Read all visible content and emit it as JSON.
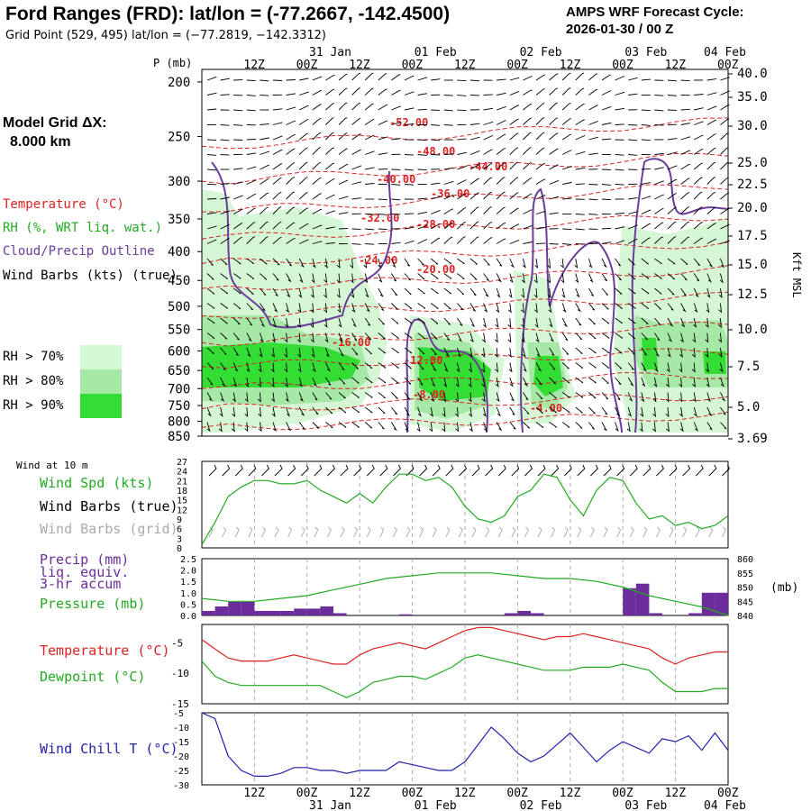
{
  "header": {
    "title": "Ford Ranges (FRD):  lat/lon = (-77.2667, -142.4500)",
    "subtitle": "Grid Point (529, 495) lat/lon = (−77.2819, −142.3312)",
    "cycle_line1": "AMPS WRF Forecast Cycle:",
    "cycle_line2": "2026-01-30 / 00  Z"
  },
  "model_grid": {
    "line1": "Model Grid ΔX:",
    "line2": "8.000 km"
  },
  "legend": {
    "items": [
      {
        "label": "Temperature (°C)",
        "color": "#dd2222"
      },
      {
        "label": "RH (%, WRT liq. wat.)",
        "color": "#22aa22"
      },
      {
        "label": "Cloud/Precip Outline",
        "color": "#6a3d9a"
      },
      {
        "label": "Wind Barbs (kts) (true)",
        "color": "#000000"
      }
    ],
    "rh_boxes": [
      {
        "label": "RH > 70%",
        "color": "#d4f7d4"
      },
      {
        "label": "RH > 80%",
        "color": "#a6e8a6"
      },
      {
        "label": "RH > 90%",
        "color": "#33dd33"
      }
    ]
  },
  "time_axis": {
    "hour_labels": [
      "12Z",
      "00Z",
      "12Z",
      "00Z",
      "12Z",
      "00Z",
      "12Z",
      "00Z",
      "12Z",
      "00Z"
    ],
    "date_labels": [
      "31 Jan",
      "01 Feb",
      "02 Feb",
      "03 Feb",
      "04 Feb"
    ]
  },
  "panels": {
    "upper_air": {
      "ylabel_left": "P (mb)",
      "ylabel_right": "Kft MSL",
      "pressure_ticks": [
        "200",
        "250",
        "300",
        "350",
        "400",
        "450",
        "500",
        "550",
        "600",
        "650",
        "700",
        "750",
        "800",
        "850"
      ],
      "kft_ticks": [
        "40.0",
        "35.0",
        "30.0",
        "25.0",
        "22.5",
        "20.0",
        "17.5",
        "15.0",
        "12.5",
        "10.0",
        "7.5",
        "5.0",
        "3.69"
      ],
      "temp_labels": [
        "-52.00",
        "-48.00",
        "-44.00",
        "-40.00",
        "-36.00",
        "-32.00",
        "-28.00",
        "-24.00",
        "-20.00",
        "-16.00",
        "-12.00",
        "-8.00",
        "-4.00"
      ]
    },
    "wind": {
      "heading": "Wind at 10 m",
      "labels": [
        {
          "text": "Wind Spd (kts)",
          "color": "#22aa22"
        },
        {
          "text": "Wind Barbs (true)",
          "color": "#000000"
        },
        {
          "text": "Wind Barbs (grid)",
          "color": "#aaaaaa"
        }
      ],
      "yticks": [
        "27",
        "24",
        "21",
        "18",
        "15",
        "12",
        "9",
        "6",
        "3",
        "0"
      ]
    },
    "precip": {
      "labels": [
        {
          "text": "Precip (mm)",
          "color": "#6a2d9a"
        },
        {
          "text": "liq. equiv.",
          "color": "#6a2d9a"
        },
        {
          "text": "3-hr accum",
          "color": "#6a2d9a"
        },
        {
          "text": "Pressure (mb)",
          "color": "#22aa22"
        }
      ],
      "left_ticks": [
        "2.5",
        "2.0",
        "1.5",
        "1.0",
        "0.5",
        "0.0"
      ],
      "right_ticks": [
        "860",
        "855",
        "850",
        "845",
        "840"
      ],
      "right_unit": "(mb)"
    },
    "temperature": {
      "labels": [
        {
          "text": "Temperature (°C)",
          "color": "#dd2222"
        },
        {
          "text": "Dewpoint (°C)",
          "color": "#22aa22"
        }
      ],
      "yticks": [
        "-5",
        "-10",
        "-15"
      ]
    },
    "windchill": {
      "labels": [
        {
          "text": "Wind Chill T (°C)",
          "color": "#2222aa"
        }
      ],
      "yticks": [
        "-5",
        "-10",
        "-15",
        "-20",
        "-25",
        "-30"
      ]
    }
  },
  "chart_data": [
    {
      "type": "line",
      "title": "Wind at 10 m",
      "ylabel": "Wind Spd (kts)",
      "ylim": [
        0,
        27
      ],
      "series": [
        {
          "name": "Wind Spd (kts)",
          "color": "#22aa22",
          "x_hours": [
            0,
            3,
            6,
            9,
            12,
            15,
            18,
            21,
            24,
            27,
            30,
            33,
            36,
            39,
            42,
            45,
            48,
            51,
            54,
            57,
            60,
            63,
            66,
            69,
            72,
            75,
            78,
            81,
            84,
            87,
            90,
            93,
            96,
            99,
            102,
            105,
            108,
            111,
            114,
            117,
            120
          ],
          "values": [
            1,
            8,
            16,
            19,
            21,
            21,
            20,
            20,
            21,
            18,
            16,
            14,
            17,
            14,
            19,
            23,
            23,
            21,
            22,
            19,
            13,
            9,
            8,
            10,
            16,
            18,
            23,
            22,
            15,
            10,
            18,
            22,
            21,
            14,
            9,
            10,
            7,
            8,
            6,
            7,
            10
          ]
        }
      ]
    },
    {
      "type": "bar",
      "title": "Precip (mm) liq. equiv. 3-hr accum",
      "ylim": [
        0,
        2.5
      ],
      "series": [
        {
          "name": "Precip (mm)",
          "color": "#6a2d9a",
          "x_hours": [
            0,
            3,
            6,
            9,
            12,
            15,
            18,
            21,
            24,
            27,
            30,
            33,
            36,
            39,
            42,
            45,
            48,
            51,
            54,
            57,
            60,
            63,
            66,
            69,
            72,
            75,
            78,
            81,
            84,
            87,
            90,
            93,
            96,
            99,
            102,
            105,
            108,
            111,
            114,
            117
          ],
          "values": [
            0.2,
            0.4,
            0.6,
            0.6,
            0.2,
            0.2,
            0.2,
            0.3,
            0.3,
            0.4,
            0.1,
            0,
            0,
            0,
            0,
            0.05,
            0,
            0,
            0,
            0,
            0,
            0,
            0,
            0.1,
            0.2,
            0.1,
            0,
            0,
            0,
            0,
            0,
            0,
            1.2,
            1.4,
            0.1,
            0,
            0,
            0.1,
            1.0,
            1.0
          ]
        },
        {
          "name": "Pressure (mb)",
          "color": "#22aa22",
          "type": "line",
          "x_hours": [
            0,
            6,
            12,
            18,
            24,
            30,
            36,
            42,
            48,
            54,
            60,
            66,
            72,
            78,
            84,
            90,
            96,
            102,
            108,
            114,
            120
          ],
          "values": [
            846,
            845,
            845,
            846,
            847,
            849,
            851,
            853,
            854,
            855,
            855,
            855,
            854,
            853,
            853,
            852,
            850,
            847,
            845,
            843,
            840
          ]
        }
      ]
    },
    {
      "type": "line",
      "title": "Temperature / Dewpoint",
      "ylim": [
        -15,
        -2
      ],
      "series": [
        {
          "name": "Temperature (°C)",
          "color": "#dd2222",
          "x_hours": [
            0,
            3,
            6,
            9,
            12,
            15,
            18,
            21,
            24,
            27,
            30,
            33,
            36,
            39,
            42,
            45,
            48,
            51,
            54,
            57,
            60,
            63,
            66,
            69,
            72,
            75,
            78,
            81,
            84,
            87,
            90,
            93,
            96,
            99,
            102,
            105,
            108,
            111,
            114,
            117,
            120
          ],
          "values": [
            -4.5,
            -6,
            -7.5,
            -8,
            -8,
            -8,
            -7.5,
            -7,
            -7.5,
            -8,
            -8.5,
            -8.5,
            -7,
            -6,
            -5.5,
            -5,
            -5.5,
            -6,
            -5,
            -4,
            -3,
            -2.5,
            -2.5,
            -3,
            -3.5,
            -4,
            -4.5,
            -4,
            -4,
            -3.5,
            -4,
            -4.5,
            -5,
            -5.5,
            -6,
            -7.5,
            -8.5,
            -7.5,
            -7,
            -6.5,
            -6.5
          ]
        },
        {
          "name": "Dewpoint (°C)",
          "color": "#22aa22",
          "x_hours": [
            0,
            3,
            6,
            9,
            12,
            15,
            18,
            21,
            24,
            27,
            30,
            33,
            36,
            39,
            42,
            45,
            48,
            51,
            54,
            57,
            60,
            63,
            66,
            69,
            72,
            75,
            78,
            81,
            84,
            87,
            90,
            93,
            96,
            99,
            102,
            105,
            108,
            111,
            114,
            117,
            120
          ],
          "values": [
            -8,
            -10.5,
            -11.5,
            -12,
            -12,
            -12,
            -12,
            -12,
            -12,
            -12,
            -13,
            -14,
            -13,
            -11.5,
            -11,
            -10.5,
            -10.5,
            -11,
            -10,
            -9,
            -7.5,
            -7,
            -7.5,
            -8,
            -8.5,
            -9,
            -9.5,
            -9.5,
            -9.5,
            -9,
            -9,
            -9,
            -8.5,
            -9,
            -9.5,
            -11.5,
            -13,
            -13,
            -13,
            -12.5,
            -12.5
          ]
        }
      ]
    },
    {
      "type": "line",
      "title": "Wind Chill T",
      "ylim": [
        -30,
        -5
      ],
      "series": [
        {
          "name": "Wind Chill T (°C)",
          "color": "#2222aa",
          "x_hours": [
            0,
            3,
            6,
            9,
            12,
            15,
            18,
            21,
            24,
            27,
            30,
            33,
            36,
            39,
            42,
            45,
            48,
            51,
            54,
            57,
            60,
            63,
            66,
            69,
            72,
            75,
            78,
            81,
            84,
            87,
            90,
            93,
            96,
            99,
            102,
            105,
            108,
            111,
            114,
            117,
            120
          ],
          "values": [
            -5,
            -7,
            -20,
            -25,
            -27,
            -27,
            -26,
            -24,
            -24,
            -25,
            -25,
            -26,
            -25,
            -25,
            -25,
            -22,
            -23,
            -24,
            -25,
            -25,
            -22,
            -16,
            -10,
            -14,
            -19,
            -22,
            -20,
            -16,
            -12,
            -17,
            -22,
            -18,
            -15,
            -17,
            -19,
            -14,
            -15,
            -13,
            -18,
            -12,
            -18
          ]
        }
      ]
    }
  ]
}
